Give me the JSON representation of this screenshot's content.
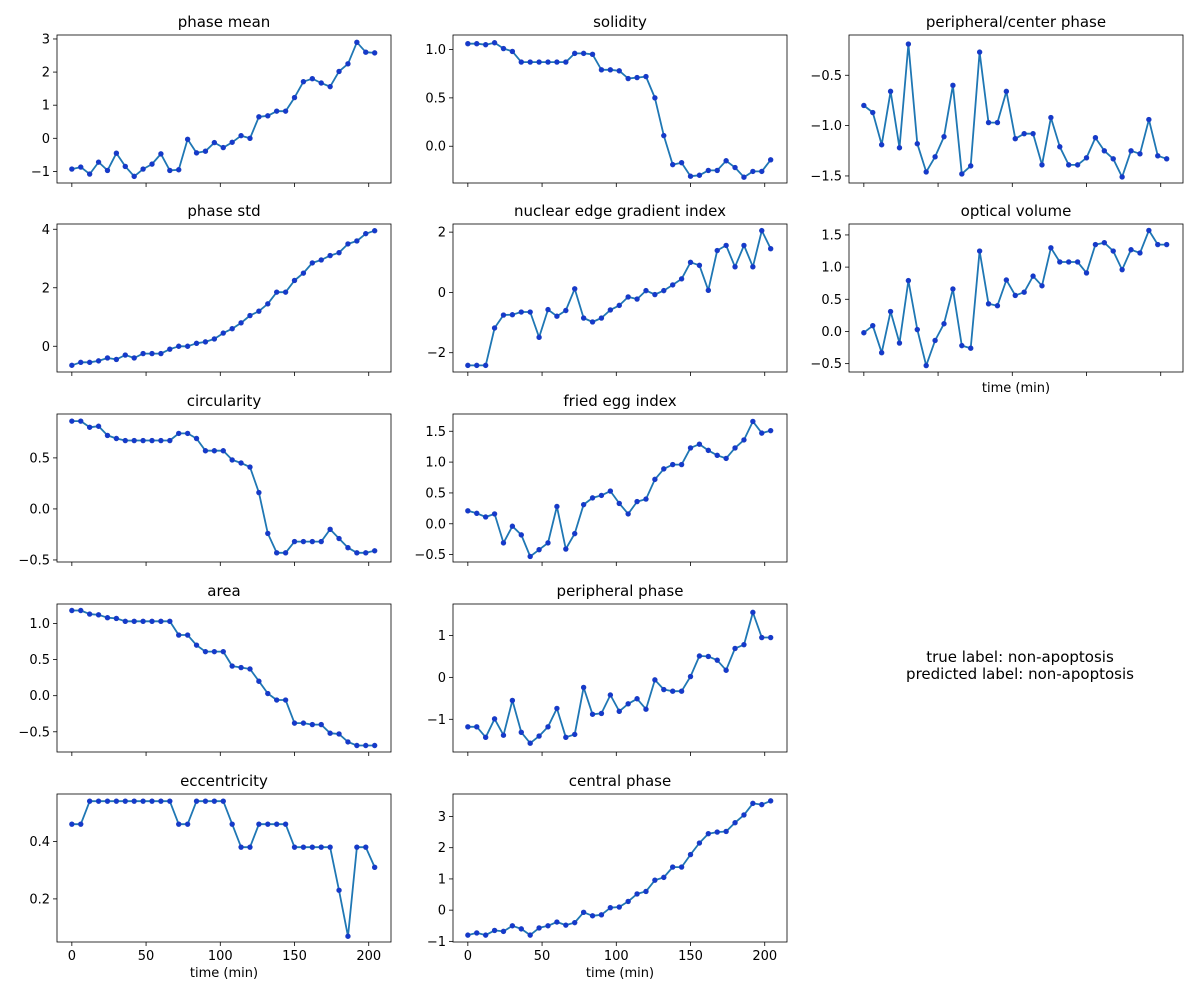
{
  "chart_data": [
    {
      "type": "line",
      "title": "phase mean",
      "x": [
        0,
        6,
        12,
        18,
        24,
        30,
        36,
        42,
        48,
        54,
        60,
        66,
        72,
        78,
        84,
        90,
        96,
        102,
        108,
        114,
        120,
        126,
        132,
        138,
        144,
        150,
        156,
        162,
        168,
        174,
        180,
        186,
        192,
        198,
        204
      ],
      "values": [
        -0.93,
        -0.87,
        -1.08,
        -0.72,
        -0.97,
        -0.45,
        -0.85,
        -1.15,
        -0.93,
        -0.78,
        -0.47,
        -0.97,
        -0.95,
        -0.03,
        -0.44,
        -0.39,
        -0.13,
        -0.28,
        -0.12,
        0.08,
        0.0,
        0.65,
        0.68,
        0.82,
        0.82,
        1.23,
        1.71,
        1.8,
        1.67,
        1.56,
        2.02,
        2.25,
        2.9,
        2.6,
        2.58
      ],
      "xlim": [
        -10,
        215
      ],
      "ylim": [
        -1.35,
        3.12
      ],
      "xticks": [
        0,
        50,
        100,
        150,
        200
      ],
      "yticks": [
        -1,
        0,
        1,
        2,
        3
      ],
      "xlabel": "",
      "show_xticklabels": false
    },
    {
      "type": "line",
      "title": "solidity",
      "x": [
        0,
        6,
        12,
        18,
        24,
        30,
        36,
        42,
        48,
        54,
        60,
        66,
        72,
        78,
        84,
        90,
        96,
        102,
        108,
        114,
        120,
        126,
        132,
        138,
        144,
        150,
        156,
        162,
        168,
        174,
        180,
        186,
        192,
        198,
        204
      ],
      "values": [
        1.06,
        1.06,
        1.05,
        1.07,
        1.01,
        0.98,
        0.87,
        0.87,
        0.87,
        0.87,
        0.87,
        0.87,
        0.96,
        0.96,
        0.95,
        0.79,
        0.79,
        0.78,
        0.7,
        0.71,
        0.72,
        0.5,
        0.11,
        -0.19,
        -0.17,
        -0.31,
        -0.3,
        -0.25,
        -0.25,
        -0.15,
        -0.22,
        -0.32,
        -0.26,
        -0.26,
        -0.14
      ],
      "xlim": [
        -10,
        215
      ],
      "ylim": [
        -0.38,
        1.15
      ],
      "xticks": [
        0,
        50,
        100,
        150,
        200
      ],
      "yticks": [
        0.0,
        0.5,
        1.0
      ],
      "xlabel": "",
      "show_xticklabels": false
    },
    {
      "type": "line",
      "title": "peripheral/center phase",
      "x": [
        0,
        6,
        12,
        18,
        24,
        30,
        36,
        42,
        48,
        54,
        60,
        66,
        72,
        78,
        84,
        90,
        96,
        102,
        108,
        114,
        120,
        126,
        132,
        138,
        144,
        150,
        156,
        162,
        168,
        174,
        180,
        186,
        192,
        198,
        204
      ],
      "values": [
        -0.8,
        -0.87,
        -1.19,
        -0.66,
        -1.22,
        -0.19,
        -1.18,
        -1.46,
        -1.31,
        -1.11,
        -0.6,
        -1.48,
        -1.4,
        -0.27,
        -0.97,
        -0.97,
        -0.66,
        -1.13,
        -1.08,
        -1.08,
        -1.39,
        -0.92,
        -1.21,
        -1.39,
        -1.39,
        -1.32,
        -1.12,
        -1.25,
        -1.33,
        -1.51,
        -1.25,
        -1.28,
        -0.94,
        -1.3,
        -1.33
      ],
      "xlim": [
        -10,
        215
      ],
      "ylim": [
        -1.57,
        -0.1
      ],
      "xticks": [
        0,
        50,
        100,
        150,
        200
      ],
      "yticks": [
        -1.5,
        -1.0,
        -0.5
      ],
      "xlabel": "",
      "show_xticklabels": false
    },
    {
      "type": "line",
      "title": "phase std",
      "x": [
        0,
        6,
        12,
        18,
        24,
        30,
        36,
        42,
        48,
        54,
        60,
        66,
        72,
        78,
        84,
        90,
        96,
        102,
        108,
        114,
        120,
        126,
        132,
        138,
        144,
        150,
        156,
        162,
        168,
        174,
        180,
        186,
        192,
        198,
        204
      ],
      "values": [
        -0.65,
        -0.55,
        -0.55,
        -0.5,
        -0.4,
        -0.45,
        -0.3,
        -0.4,
        -0.25,
        -0.25,
        -0.25,
        -0.1,
        0.0,
        0.0,
        0.1,
        0.15,
        0.25,
        0.45,
        0.6,
        0.8,
        1.05,
        1.2,
        1.45,
        1.85,
        1.85,
        2.25,
        2.5,
        2.85,
        2.95,
        3.1,
        3.2,
        3.5,
        3.6,
        3.85,
        3.95
      ],
      "xlim": [
        -10,
        215
      ],
      "ylim": [
        -0.88,
        4.18
      ],
      "xticks": [
        0,
        50,
        100,
        150,
        200
      ],
      "yticks": [
        0,
        2,
        4
      ],
      "xlabel": "",
      "show_xticklabels": false
    },
    {
      "type": "line",
      "title": "nuclear edge gradient index",
      "x": [
        0,
        6,
        12,
        18,
        24,
        30,
        36,
        42,
        48,
        54,
        60,
        66,
        72,
        78,
        84,
        90,
        96,
        102,
        108,
        114,
        120,
        126,
        132,
        138,
        144,
        150,
        156,
        162,
        168,
        174,
        180,
        186,
        192,
        198,
        204
      ],
      "values": [
        -2.42,
        -2.42,
        -2.42,
        -1.18,
        -0.75,
        -0.74,
        -0.65,
        -0.65,
        -1.49,
        -0.57,
        -0.79,
        -0.6,
        0.12,
        -0.85,
        -0.98,
        -0.85,
        -0.58,
        -0.43,
        -0.15,
        -0.22,
        0.06,
        -0.07,
        0.06,
        0.25,
        0.45,
        1.0,
        0.9,
        0.07,
        1.39,
        1.56,
        0.85,
        1.56,
        0.85,
        2.05,
        1.45
      ],
      "xlim": [
        -10,
        215
      ],
      "ylim": [
        -2.64,
        2.27
      ],
      "xticks": [
        0,
        50,
        100,
        150,
        200
      ],
      "yticks": [
        -2,
        0,
        2
      ],
      "xlabel": "",
      "show_xticklabels": false
    },
    {
      "type": "line",
      "title": "optical volume",
      "x": [
        0,
        6,
        12,
        18,
        24,
        30,
        36,
        42,
        48,
        54,
        60,
        66,
        72,
        78,
        84,
        90,
        96,
        102,
        108,
        114,
        120,
        126,
        132,
        138,
        144,
        150,
        156,
        162,
        168,
        174,
        180,
        186,
        192,
        198,
        204
      ],
      "values": [
        -0.02,
        0.09,
        -0.33,
        0.31,
        -0.18,
        0.79,
        0.03,
        -0.53,
        -0.14,
        0.12,
        0.66,
        -0.22,
        -0.26,
        1.25,
        0.43,
        0.4,
        0.8,
        0.56,
        0.61,
        0.86,
        0.71,
        1.3,
        1.08,
        1.08,
        1.08,
        0.91,
        1.35,
        1.38,
        1.25,
        0.96,
        1.27,
        1.22,
        1.57,
        1.35,
        1.35
      ],
      "xlim": [
        -10,
        215
      ],
      "ylim": [
        -0.63,
        1.67
      ],
      "xticks": [
        0,
        50,
        100,
        150,
        200
      ],
      "yticks": [
        -0.5,
        0.0,
        0.5,
        1.0,
        1.5
      ],
      "xlabel": "time (min)",
      "show_xticklabels": false
    },
    {
      "type": "line",
      "title": "circularity",
      "x": [
        0,
        6,
        12,
        18,
        24,
        30,
        36,
        42,
        48,
        54,
        60,
        66,
        72,
        78,
        84,
        90,
        96,
        102,
        108,
        114,
        120,
        126,
        132,
        138,
        144,
        150,
        156,
        162,
        168,
        174,
        180,
        186,
        192,
        198,
        204
      ],
      "values": [
        0.86,
        0.86,
        0.8,
        0.81,
        0.72,
        0.69,
        0.67,
        0.67,
        0.67,
        0.67,
        0.67,
        0.67,
        0.74,
        0.74,
        0.69,
        0.57,
        0.57,
        0.57,
        0.48,
        0.45,
        0.41,
        0.16,
        -0.24,
        -0.43,
        -0.43,
        -0.32,
        -0.32,
        -0.32,
        -0.32,
        -0.2,
        -0.29,
        -0.38,
        -0.43,
        -0.43,
        -0.41
      ],
      "xlim": [
        -10,
        215
      ],
      "ylim": [
        -0.52,
        0.93
      ],
      "xticks": [
        0,
        50,
        100,
        150,
        200
      ],
      "yticks": [
        -0.5,
        0.0,
        0.5
      ],
      "xlabel": "",
      "show_xticklabels": false
    },
    {
      "type": "line",
      "title": "fried egg index",
      "x": [
        0,
        6,
        12,
        18,
        24,
        30,
        36,
        42,
        48,
        54,
        60,
        66,
        72,
        78,
        84,
        90,
        96,
        102,
        108,
        114,
        120,
        126,
        132,
        138,
        144,
        150,
        156,
        162,
        168,
        174,
        180,
        186,
        192,
        198,
        204
      ],
      "values": [
        0.21,
        0.17,
        0.11,
        0.16,
        -0.31,
        -0.04,
        -0.18,
        -0.53,
        -0.42,
        -0.31,
        0.28,
        -0.41,
        -0.16,
        0.31,
        0.42,
        0.46,
        0.53,
        0.33,
        0.16,
        0.36,
        0.4,
        0.72,
        0.89,
        0.96,
        0.96,
        1.23,
        1.29,
        1.19,
        1.11,
        1.06,
        1.23,
        1.36,
        1.66,
        1.47,
        1.51
      ],
      "xlim": [
        -10,
        215
      ],
      "ylim": [
        -0.62,
        1.78
      ],
      "xticks": [
        0,
        50,
        100,
        150,
        200
      ],
      "yticks": [
        -0.5,
        0.0,
        0.5,
        1.0,
        1.5
      ],
      "xlabel": "",
      "show_xticklabels": false
    },
    {
      "type": "line",
      "title": "area",
      "x": [
        0,
        6,
        12,
        18,
        24,
        30,
        36,
        42,
        48,
        54,
        60,
        66,
        72,
        78,
        84,
        90,
        96,
        102,
        108,
        114,
        120,
        126,
        132,
        138,
        144,
        150,
        156,
        162,
        168,
        174,
        180,
        186,
        192,
        198,
        204
      ],
      "values": [
        1.18,
        1.18,
        1.13,
        1.12,
        1.08,
        1.07,
        1.03,
        1.03,
        1.03,
        1.03,
        1.03,
        1.03,
        0.84,
        0.84,
        0.7,
        0.61,
        0.61,
        0.61,
        0.41,
        0.39,
        0.37,
        0.2,
        0.03,
        -0.06,
        -0.06,
        -0.38,
        -0.38,
        -0.4,
        -0.4,
        -0.52,
        -0.53,
        -0.64,
        -0.69,
        -0.69,
        -0.69
      ],
      "xlim": [
        -10,
        215
      ],
      "ylim": [
        -0.78,
        1.27
      ],
      "xticks": [
        0,
        50,
        100,
        150,
        200
      ],
      "yticks": [
        -0.5,
        0.0,
        0.5,
        1.0
      ],
      "xlabel": "",
      "show_xticklabels": false
    },
    {
      "type": "line",
      "title": "peripheral phase",
      "x": [
        0,
        6,
        12,
        18,
        24,
        30,
        36,
        42,
        48,
        54,
        60,
        66,
        72,
        78,
        84,
        90,
        96,
        102,
        108,
        114,
        120,
        126,
        132,
        138,
        144,
        150,
        156,
        162,
        168,
        174,
        180,
        186,
        192,
        198,
        204
      ],
      "values": [
        -1.18,
        -1.18,
        -1.43,
        -0.99,
        -1.38,
        -0.55,
        -1.31,
        -1.57,
        -1.4,
        -1.18,
        -0.74,
        -1.43,
        -1.36,
        -0.24,
        -0.88,
        -0.86,
        -0.42,
        -0.81,
        -0.63,
        -0.51,
        -0.76,
        -0.06,
        -0.29,
        -0.33,
        -0.33,
        0.02,
        0.51,
        0.5,
        0.41,
        0.17,
        0.69,
        0.78,
        1.55,
        0.95,
        0.95
      ],
      "xlim": [
        -10,
        215
      ],
      "ylim": [
        -1.78,
        1.75
      ],
      "xticks": [
        0,
        50,
        100,
        150,
        200
      ],
      "yticks": [
        -1,
        0,
        1
      ],
      "xlabel": "",
      "show_xticklabels": false
    },
    {
      "type": "line",
      "title": "eccentricity",
      "x": [
        0,
        6,
        12,
        18,
        24,
        30,
        36,
        42,
        48,
        54,
        60,
        66,
        72,
        78,
        84,
        90,
        96,
        102,
        108,
        114,
        120,
        126,
        132,
        138,
        144,
        150,
        156,
        162,
        168,
        174,
        180,
        186,
        192,
        198,
        204
      ],
      "values": [
        0.46,
        0.46,
        0.54,
        0.54,
        0.54,
        0.54,
        0.54,
        0.54,
        0.54,
        0.54,
        0.54,
        0.54,
        0.46,
        0.46,
        0.54,
        0.54,
        0.54,
        0.54,
        0.46,
        0.38,
        0.38,
        0.46,
        0.46,
        0.46,
        0.46,
        0.38,
        0.38,
        0.38,
        0.38,
        0.38,
        0.23,
        0.07,
        0.38,
        0.38,
        0.31
      ],
      "xlim": [
        -10,
        215
      ],
      "ylim": [
        0.05,
        0.565
      ],
      "xticks": [
        0,
        50,
        100,
        150,
        200
      ],
      "yticks": [
        0.2,
        0.4
      ],
      "xlabel": "time (min)",
      "show_xticklabels": true
    },
    {
      "type": "line",
      "title": "central phase",
      "x": [
        0,
        6,
        12,
        18,
        24,
        30,
        36,
        42,
        48,
        54,
        60,
        66,
        72,
        78,
        84,
        90,
        96,
        102,
        108,
        114,
        120,
        126,
        132,
        138,
        144,
        150,
        156,
        162,
        168,
        174,
        180,
        186,
        192,
        198,
        204
      ],
      "values": [
        -0.8,
        -0.73,
        -0.8,
        -0.65,
        -0.68,
        -0.5,
        -0.6,
        -0.8,
        -0.57,
        -0.5,
        -0.38,
        -0.48,
        -0.4,
        -0.07,
        -0.18,
        -0.15,
        0.08,
        0.1,
        0.28,
        0.52,
        0.6,
        0.96,
        1.05,
        1.38,
        1.38,
        1.78,
        2.15,
        2.45,
        2.5,
        2.52,
        2.8,
        3.05,
        3.42,
        3.38,
        3.5
      ],
      "xlim": [
        -10,
        215
      ],
      "ylim": [
        -1.02,
        3.72
      ],
      "xticks": [
        0,
        50,
        100,
        150,
        200
      ],
      "yticks": [
        -1,
        0,
        1,
        2,
        3
      ],
      "xlabel": "time (min)",
      "show_xticklabels": true
    }
  ],
  "label_panel": {
    "true_label": "true label: non-apoptosis",
    "predicted_label": "predicted label: non-apoptosis"
  }
}
